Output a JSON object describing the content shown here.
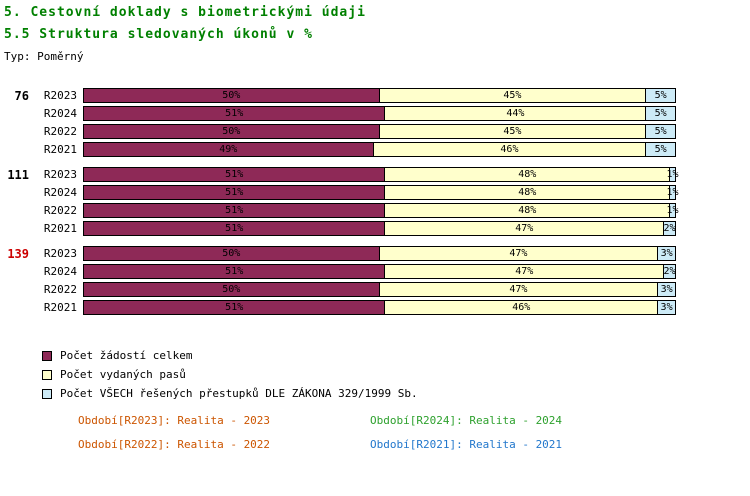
{
  "header": {
    "title1": "5. Cestovní doklady s biometrickými údaji",
    "title2": "5.5 Struktura sledovaných úkonů v %",
    "type_label": "Typ: Poměrný"
  },
  "chart_data": {
    "type": "bar",
    "orientation": "horizontal",
    "stacked": true,
    "unit": "%",
    "xlim": [
      0,
      100
    ],
    "grid": false,
    "legend_position": "bottom-left",
    "series_names": [
      "Počet žádostí celkem",
      "Počet vydaných pasů",
      "Počet VŠECH řešených přestupků DLE ZÁKONA 329/1999 Sb."
    ],
    "colors": [
      "#8E2957",
      "#FFFFCC",
      "#CDEBF7"
    ],
    "groups": [
      {
        "label": "76",
        "label_color": "#000000",
        "rows": [
          {
            "year": "R2023",
            "values": [
              50,
              45,
              5
            ]
          },
          {
            "year": "R2024",
            "values": [
              51,
              44,
              5
            ]
          },
          {
            "year": "R2022",
            "values": [
              50,
              45,
              5
            ]
          },
          {
            "year": "R2021",
            "values": [
              49,
              46,
              5
            ]
          }
        ]
      },
      {
        "label": "111",
        "label_color": "#000000",
        "rows": [
          {
            "year": "R2023",
            "values": [
              51,
              48,
              1
            ]
          },
          {
            "year": "R2024",
            "values": [
              51,
              48,
              1
            ]
          },
          {
            "year": "R2022",
            "values": [
              51,
              48,
              1
            ]
          },
          {
            "year": "R2021",
            "values": [
              51,
              47,
              2
            ]
          }
        ]
      },
      {
        "label": "139",
        "label_color": "#CC0000",
        "rows": [
          {
            "year": "R2023",
            "values": [
              50,
              47,
              3
            ]
          },
          {
            "year": "R2024",
            "values": [
              51,
              47,
              2
            ]
          },
          {
            "year": "R2022",
            "values": [
              50,
              47,
              3
            ]
          },
          {
            "year": "R2021",
            "values": [
              51,
              46,
              3
            ]
          }
        ]
      }
    ]
  },
  "legend": [
    {
      "label": "Počet žádostí celkem",
      "color": "#8E2957"
    },
    {
      "label": "Počet vydaných pasů",
      "color": "#FFFFCC"
    },
    {
      "label": "Počet VŠECH řešených přestupků DLE ZÁKONA 329/1999 Sb.",
      "color": "#CDEBF7"
    }
  ],
  "footer": [
    {
      "text": "Období[R2023]: Realita - 2023",
      "color": "#CC5500"
    },
    {
      "text": "Období[R2024]: Realita - 2024",
      "color": "#2EA12E"
    },
    {
      "text": "Období[R2022]: Realita - 2022",
      "color": "#CC5500"
    },
    {
      "text": "Období[R2021]: Realita - 2021",
      "color": "#2277CC"
    }
  ]
}
